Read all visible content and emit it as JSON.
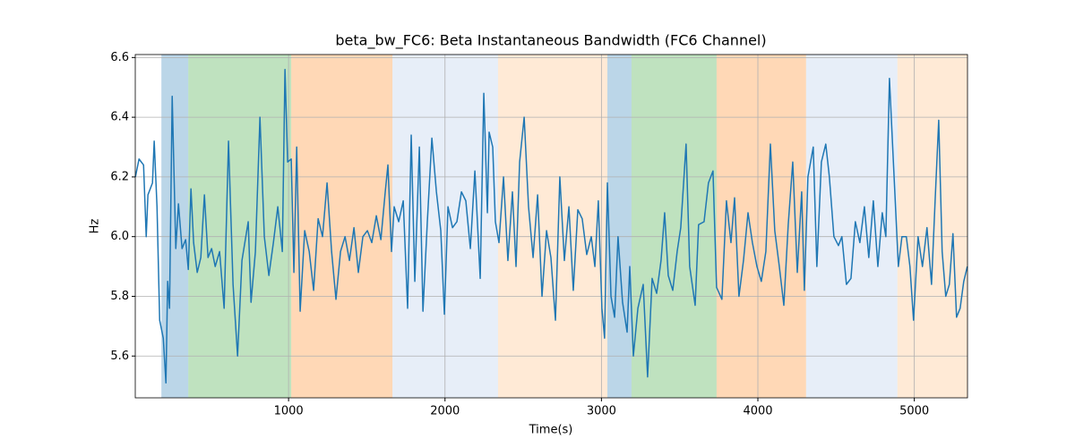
{
  "chart_data": {
    "type": "line",
    "title": "beta_bw_FC6: Beta Instantaneous Bandwidth (FC6 Channel)",
    "x_label": "Time(s)",
    "y_label": "Hz",
    "xlim": [
      20,
      5340
    ],
    "ylim": [
      5.46,
      6.61
    ],
    "xticks": [
      1000,
      2000,
      3000,
      4000,
      5000
    ],
    "yticks": [
      5.6,
      5.8,
      {
        "value": 6,
        "label": "6.0"
      },
      6.2,
      6.4,
      6.6
    ],
    "grid": true,
    "span_alpha": 0.3,
    "spans": [
      {
        "start": 187,
        "end": 359,
        "color": "#1f77b4"
      },
      {
        "start": 359,
        "end": 1017,
        "color": "#2ca02c"
      },
      {
        "start": 1017,
        "end": 1664,
        "color": "#ff7f0e"
      },
      {
        "start": 1664,
        "end": 2339,
        "color": "#aec7e8"
      },
      {
        "start": 2339,
        "end": 3038,
        "color": "#ffbb78"
      },
      {
        "start": 3038,
        "end": 3192,
        "color": "#1f77b4"
      },
      {
        "start": 3192,
        "end": 3736,
        "color": "#2ca02c"
      },
      {
        "start": 3736,
        "end": 4308,
        "color": "#ff7f0e"
      },
      {
        "start": 4308,
        "end": 4892,
        "color": "#aec7e8"
      },
      {
        "start": 4892,
        "end": 5340,
        "color": "#ffbb78"
      }
    ],
    "x": [
      21,
      44,
      73,
      90,
      101,
      130,
      141,
      159,
      176,
      199,
      216,
      227,
      239,
      256,
      279,
      296,
      319,
      342,
      359,
      376,
      393,
      416,
      439,
      462,
      485,
      508,
      531,
      559,
      588,
      616,
      645,
      674,
      702,
      742,
      760,
      788,
      817,
      845,
      874,
      903,
      931,
      960,
      977,
      994,
      1017,
      1034,
      1052,
      1074,
      1103,
      1132,
      1160,
      1189,
      1217,
      1246,
      1275,
      1303,
      1332,
      1361,
      1389,
      1418,
      1446,
      1475,
      1504,
      1532,
      1561,
      1590,
      1618,
      1635,
      1658,
      1675,
      1704,
      1733,
      1761,
      1784,
      1807,
      1836,
      1859,
      1887,
      1916,
      1945,
      1973,
      1996,
      2019,
      2048,
      2076,
      2105,
      2133,
      2162,
      2191,
      2225,
      2248,
      2271,
      2282,
      2305,
      2322,
      2345,
      2374,
      2402,
      2431,
      2454,
      2477,
      2506,
      2534,
      2563,
      2592,
      2620,
      2649,
      2677,
      2706,
      2734,
      2763,
      2792,
      2820,
      2849,
      2877,
      2906,
      2935,
      2958,
      2980,
      3003,
      3020,
      3038,
      3061,
      3084,
      3106,
      3135,
      3164,
      3181,
      3204,
      3233,
      3267,
      3295,
      3324,
      3353,
      3381,
      3404,
      3427,
      3456,
      3484,
      3507,
      3541,
      3564,
      3599,
      3621,
      3656,
      3684,
      3713,
      3736,
      3770,
      3799,
      3828,
      3851,
      3879,
      3908,
      3937,
      3965,
      3994,
      4022,
      4051,
      4080,
      4108,
      4137,
      4166,
      4194,
      4223,
      4252,
      4280,
      4297,
      4320,
      4354,
      4377,
      4406,
      4434,
      4457,
      4486,
      4515,
      4537,
      4566,
      4595,
      4623,
      4652,
      4681,
      4709,
      4738,
      4767,
      4795,
      4818,
      4841,
      4869,
      4898,
      4921,
      4949,
      4972,
      4995,
      5024,
      5052,
      5081,
      5110,
      5133,
      5156,
      5178,
      5201,
      5224,
      5247,
      5270,
      5293,
      5316,
      5339
    ],
    "series": [
      {
        "name": "beta_bw_FC6",
        "color": "#1f77b4",
        "values": [
          6.2,
          6.26,
          6.24,
          6.0,
          6.14,
          6.18,
          6.32,
          6.1,
          5.72,
          5.66,
          5.51,
          5.85,
          5.76,
          6.47,
          5.96,
          6.11,
          5.96,
          5.99,
          5.89,
          6.16,
          5.98,
          5.88,
          5.93,
          6.14,
          5.93,
          5.96,
          5.9,
          5.95,
          5.76,
          6.32,
          5.84,
          5.6,
          5.92,
          6.05,
          5.78,
          5.95,
          6.4,
          6.0,
          5.87,
          5.98,
          6.1,
          5.95,
          6.56,
          6.25,
          6.26,
          5.88,
          6.3,
          5.75,
          6.02,
          5.95,
          5.82,
          6.06,
          6.0,
          6.18,
          5.95,
          5.79,
          5.95,
          6.0,
          5.92,
          6.03,
          5.88,
          6.0,
          6.02,
          5.98,
          6.07,
          5.99,
          6.15,
          6.24,
          5.95,
          6.1,
          6.05,
          6.12,
          5.76,
          6.34,
          5.85,
          6.3,
          5.75,
          6.05,
          6.33,
          6.15,
          6.02,
          5.74,
          6.1,
          6.03,
          6.05,
          6.15,
          6.12,
          5.96,
          6.22,
          5.86,
          6.48,
          6.08,
          6.35,
          6.3,
          6.05,
          5.98,
          6.2,
          5.92,
          6.15,
          5.9,
          6.25,
          6.4,
          6.1,
          5.93,
          6.14,
          5.8,
          6.02,
          5.93,
          5.72,
          6.2,
          5.92,
          6.1,
          5.82,
          6.09,
          6.06,
          5.94,
          6.0,
          5.9,
          6.12,
          5.76,
          5.66,
          6.18,
          5.8,
          5.73,
          6.0,
          5.78,
          5.68,
          5.9,
          5.6,
          5.76,
          5.84,
          5.53,
          5.86,
          5.81,
          5.92,
          6.08,
          5.87,
          5.82,
          5.95,
          6.03,
          6.31,
          5.9,
          5.77,
          6.04,
          6.05,
          6.18,
          6.22,
          5.83,
          5.79,
          6.12,
          5.98,
          6.13,
          5.8,
          5.92,
          6.08,
          5.98,
          5.9,
          5.85,
          5.95,
          6.31,
          6.02,
          5.9,
          5.77,
          6.04,
          6.25,
          5.88,
          6.15,
          5.82,
          6.2,
          6.3,
          5.9,
          6.25,
          6.31,
          6.2,
          6.0,
          5.97,
          6.0,
          5.84,
          5.86,
          6.05,
          5.98,
          6.1,
          5.93,
          6.12,
          5.9,
          6.08,
          6.0,
          6.53,
          6.22,
          5.9,
          6.0,
          6.0,
          5.9,
          5.72,
          6.0,
          5.9,
          6.03,
          5.84,
          6.12,
          6.39,
          5.95,
          5.8,
          5.84,
          6.01,
          5.73,
          5.76,
          5.85,
          5.9
        ]
      }
    ]
  }
}
